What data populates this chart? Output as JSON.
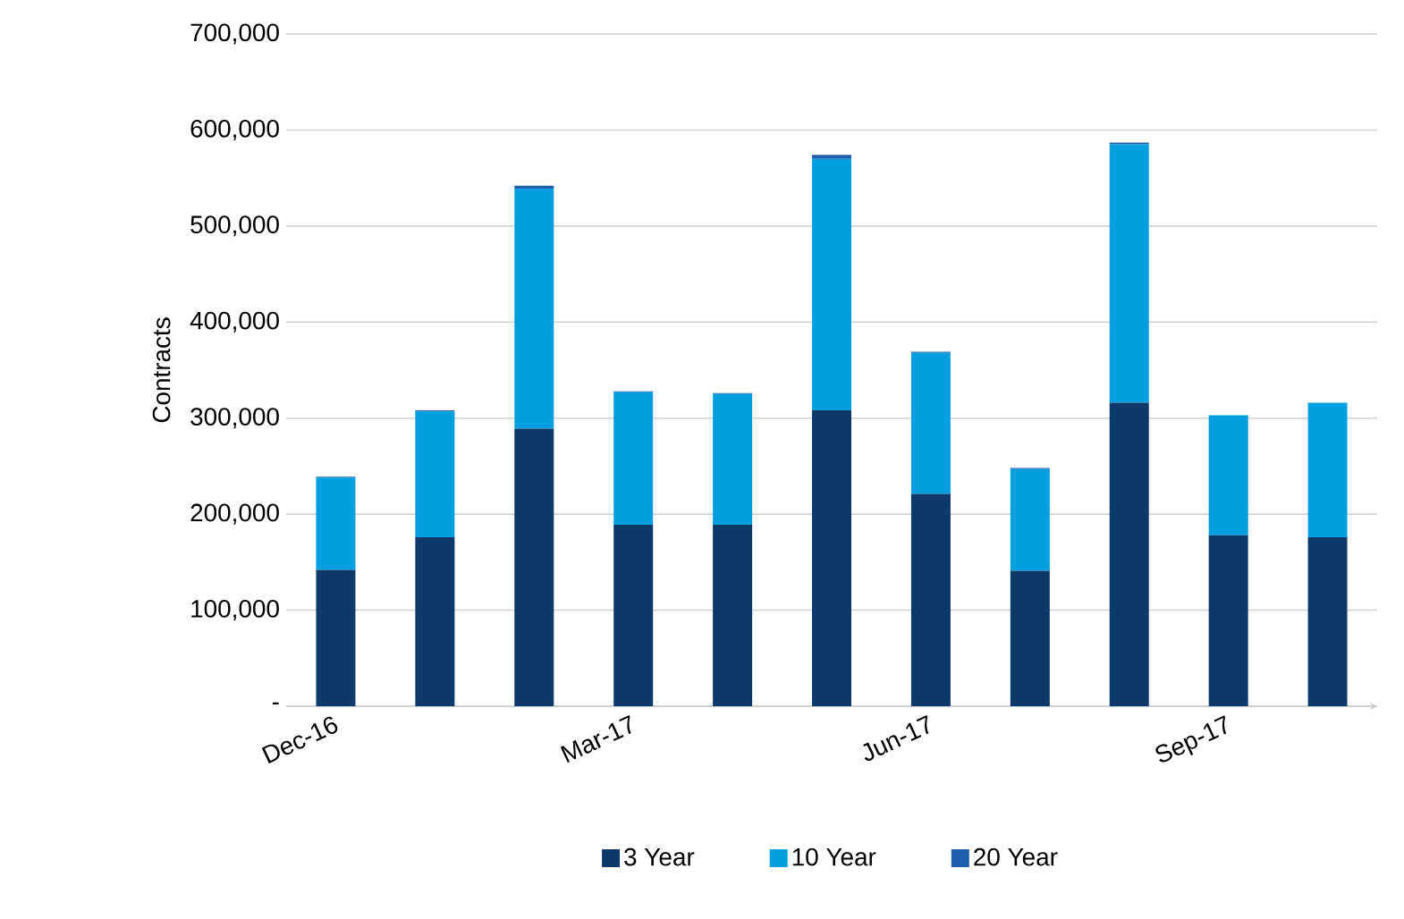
{
  "chart_data": {
    "type": "bar",
    "stacked": true,
    "ylabel": "Contracts",
    "categories": [
      "Dec-16",
      null,
      null,
      "Mar-17",
      null,
      null,
      "Jun-17",
      null,
      null,
      "Sep-17",
      null
    ],
    "series": [
      {
        "name": "3 Year",
        "color": "#0e3a6b",
        "values": [
          142000,
          176000,
          289000,
          189000,
          189000,
          308000,
          221000,
          141000,
          316000,
          178000,
          176000
        ]
      },
      {
        "name": "10 Year",
        "color": "#00a0e0",
        "values": [
          96000,
          131000,
          250000,
          138000,
          136000,
          262000,
          147000,
          106000,
          269000,
          125000,
          140000
        ]
      },
      {
        "name": "20 Year",
        "color": "#1f5fb0",
        "values": [
          1000,
          1000,
          3000,
          1000,
          1000,
          4000,
          1000,
          1000,
          2000,
          null,
          1000
        ]
      }
    ],
    "ylim": [
      0,
      700000
    ],
    "yticks": [
      {
        "value": 0,
        "label": "-"
      },
      {
        "value": 100000,
        "label": "100,000"
      },
      {
        "value": 200000,
        "label": "200,000"
      },
      {
        "value": 300000,
        "label": "300,000"
      },
      {
        "value": 400000,
        "label": "400,000"
      },
      {
        "value": 500000,
        "label": "500,000"
      },
      {
        "value": 600000,
        "label": "600,000"
      },
      {
        "value": 700000,
        "label": "700,000"
      }
    ],
    "grid": "y",
    "legend": "bottom"
  }
}
